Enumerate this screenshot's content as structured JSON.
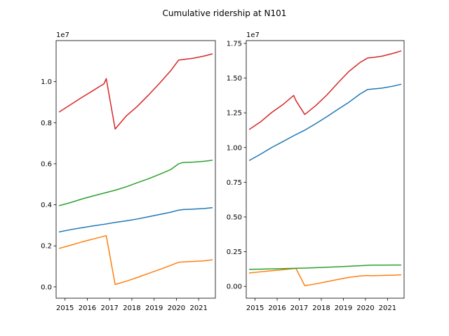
{
  "figure": {
    "title": "Cumulative ridership at N101"
  },
  "chart_data": [
    {
      "type": "line",
      "title": "",
      "xlabel": "",
      "ylabel": "",
      "offset_label": "1e7",
      "xlim": [
        2014.6,
        2021.75
      ],
      "ylim": [
        -0.055,
        1.2
      ],
      "x_ticks": [
        2015,
        2016,
        2017,
        2018,
        2019,
        2020,
        2021
      ],
      "x_tick_labels": [
        "2015",
        "2016",
        "2017",
        "2018",
        "2019",
        "2020",
        "2021"
      ],
      "y_ticks": [
        0.0,
        0.2,
        0.4,
        0.6,
        0.8,
        1.0
      ],
      "y_tick_labels": [
        "0.0",
        "0.2",
        "0.4",
        "0.6",
        "0.8",
        "1.0"
      ],
      "grid": false,
      "series": [
        {
          "color": "#1f77b4",
          "x": [
            2014.75,
            2015.25,
            2015.75,
            2016.25,
            2016.75,
            2017.25,
            2017.75,
            2018.25,
            2018.75,
            2019.25,
            2019.75,
            2020.1,
            2020.3,
            2020.75,
            2021.25,
            2021.6
          ],
          "y": [
            0.268,
            0.279,
            0.288,
            0.297,
            0.305,
            0.314,
            0.322,
            0.331,
            0.342,
            0.353,
            0.364,
            0.374,
            0.377,
            0.379,
            0.382,
            0.386
          ]
        },
        {
          "color": "#ff7f0e",
          "x": [
            2014.75,
            2015.25,
            2015.75,
            2016.25,
            2016.75,
            2016.85,
            2017.25,
            2017.75,
            2018.25,
            2018.75,
            2019.25,
            2019.75,
            2020.1,
            2020.3,
            2020.75,
            2021.25,
            2021.6
          ],
          "y": [
            0.188,
            0.203,
            0.219,
            0.233,
            0.247,
            0.25,
            0.012,
            0.028,
            0.046,
            0.066,
            0.085,
            0.105,
            0.12,
            0.122,
            0.124,
            0.127,
            0.132
          ]
        },
        {
          "color": "#2ca02c",
          "x": [
            2014.75,
            2015.25,
            2015.75,
            2016.25,
            2016.75,
            2017.25,
            2017.75,
            2018.25,
            2018.75,
            2019.25,
            2019.75,
            2020.1,
            2020.3,
            2020.75,
            2021.25,
            2021.6
          ],
          "y": [
            0.396,
            0.411,
            0.428,
            0.443,
            0.457,
            0.471,
            0.488,
            0.508,
            0.527,
            0.549,
            0.572,
            0.6,
            0.606,
            0.608,
            0.612,
            0.617
          ]
        },
        {
          "color": "#d62728",
          "x": [
            2014.75,
            2015.25,
            2015.75,
            2016.25,
            2016.75,
            2016.85,
            2017.25,
            2017.75,
            2018.25,
            2018.75,
            2019.25,
            2019.75,
            2020.1,
            2020.3,
            2020.75,
            2021.25,
            2021.6
          ],
          "y": [
            0.853,
            0.888,
            0.923,
            0.956,
            0.99,
            1.015,
            0.769,
            0.833,
            0.88,
            0.935,
            0.993,
            1.054,
            1.105,
            1.108,
            1.114,
            1.125,
            1.135
          ]
        }
      ]
    },
    {
      "type": "line",
      "title": "",
      "xlabel": "",
      "ylabel": "",
      "offset_label": "1e7",
      "xlim": [
        2014.6,
        2021.75
      ],
      "ylim": [
        -0.085,
        1.77
      ],
      "x_ticks": [
        2015,
        2016,
        2017,
        2018,
        2019,
        2020,
        2021
      ],
      "x_tick_labels": [
        "2015",
        "2016",
        "2017",
        "2018",
        "2019",
        "2020",
        "2021"
      ],
      "y_ticks": [
        0.0,
        0.25,
        0.5,
        0.75,
        1.0,
        1.25,
        1.5,
        1.75
      ],
      "y_tick_labels": [
        "0.00",
        "0.25",
        "0.50",
        "0.75",
        "1.00",
        "1.25",
        "1.50",
        "1.75"
      ],
      "grid": false,
      "series": [
        {
          "color": "#1f77b4",
          "x": [
            2014.75,
            2015.25,
            2015.75,
            2016.25,
            2016.75,
            2017.25,
            2017.75,
            2018.25,
            2018.75,
            2019.25,
            2019.75,
            2020.1,
            2020.3,
            2020.75,
            2021.25,
            2021.6
          ],
          "y": [
            0.908,
            0.952,
            1.0,
            1.042,
            1.085,
            1.125,
            1.172,
            1.222,
            1.275,
            1.326,
            1.385,
            1.418,
            1.421,
            1.428,
            1.442,
            1.455
          ]
        },
        {
          "color": "#ff7f0e",
          "x": [
            2014.75,
            2015.25,
            2015.75,
            2016.25,
            2016.75,
            2016.85,
            2017.25,
            2017.75,
            2018.25,
            2018.75,
            2019.25,
            2019.75,
            2020.1,
            2020.3,
            2020.75,
            2021.25,
            2021.6
          ],
          "y": [
            0.097,
            0.105,
            0.113,
            0.12,
            0.128,
            0.13,
            0.005,
            0.018,
            0.034,
            0.05,
            0.065,
            0.075,
            0.078,
            0.077,
            0.079,
            0.081,
            0.083
          ]
        },
        {
          "color": "#2ca02c",
          "x": [
            2014.75,
            2015.25,
            2015.75,
            2016.25,
            2016.75,
            2017.25,
            2017.75,
            2018.25,
            2018.75,
            2019.25,
            2019.75,
            2020.1,
            2020.3,
            2020.75,
            2021.25,
            2021.6
          ],
          "y": [
            0.123,
            0.124,
            0.126,
            0.128,
            0.13,
            0.132,
            0.135,
            0.138,
            0.141,
            0.145,
            0.149,
            0.152,
            0.153,
            0.153,
            0.154,
            0.154
          ]
        },
        {
          "color": "#d62728",
          "x": [
            2014.75,
            2015.25,
            2015.75,
            2016.25,
            2016.75,
            2016.85,
            2017.25,
            2017.75,
            2018.25,
            2018.75,
            2019.25,
            2019.75,
            2020.1,
            2020.3,
            2020.75,
            2021.25,
            2021.6
          ],
          "y": [
            1.132,
            1.185,
            1.252,
            1.308,
            1.375,
            1.338,
            1.238,
            1.302,
            1.378,
            1.465,
            1.548,
            1.612,
            1.645,
            1.648,
            1.658,
            1.678,
            1.695
          ]
        }
      ]
    }
  ]
}
